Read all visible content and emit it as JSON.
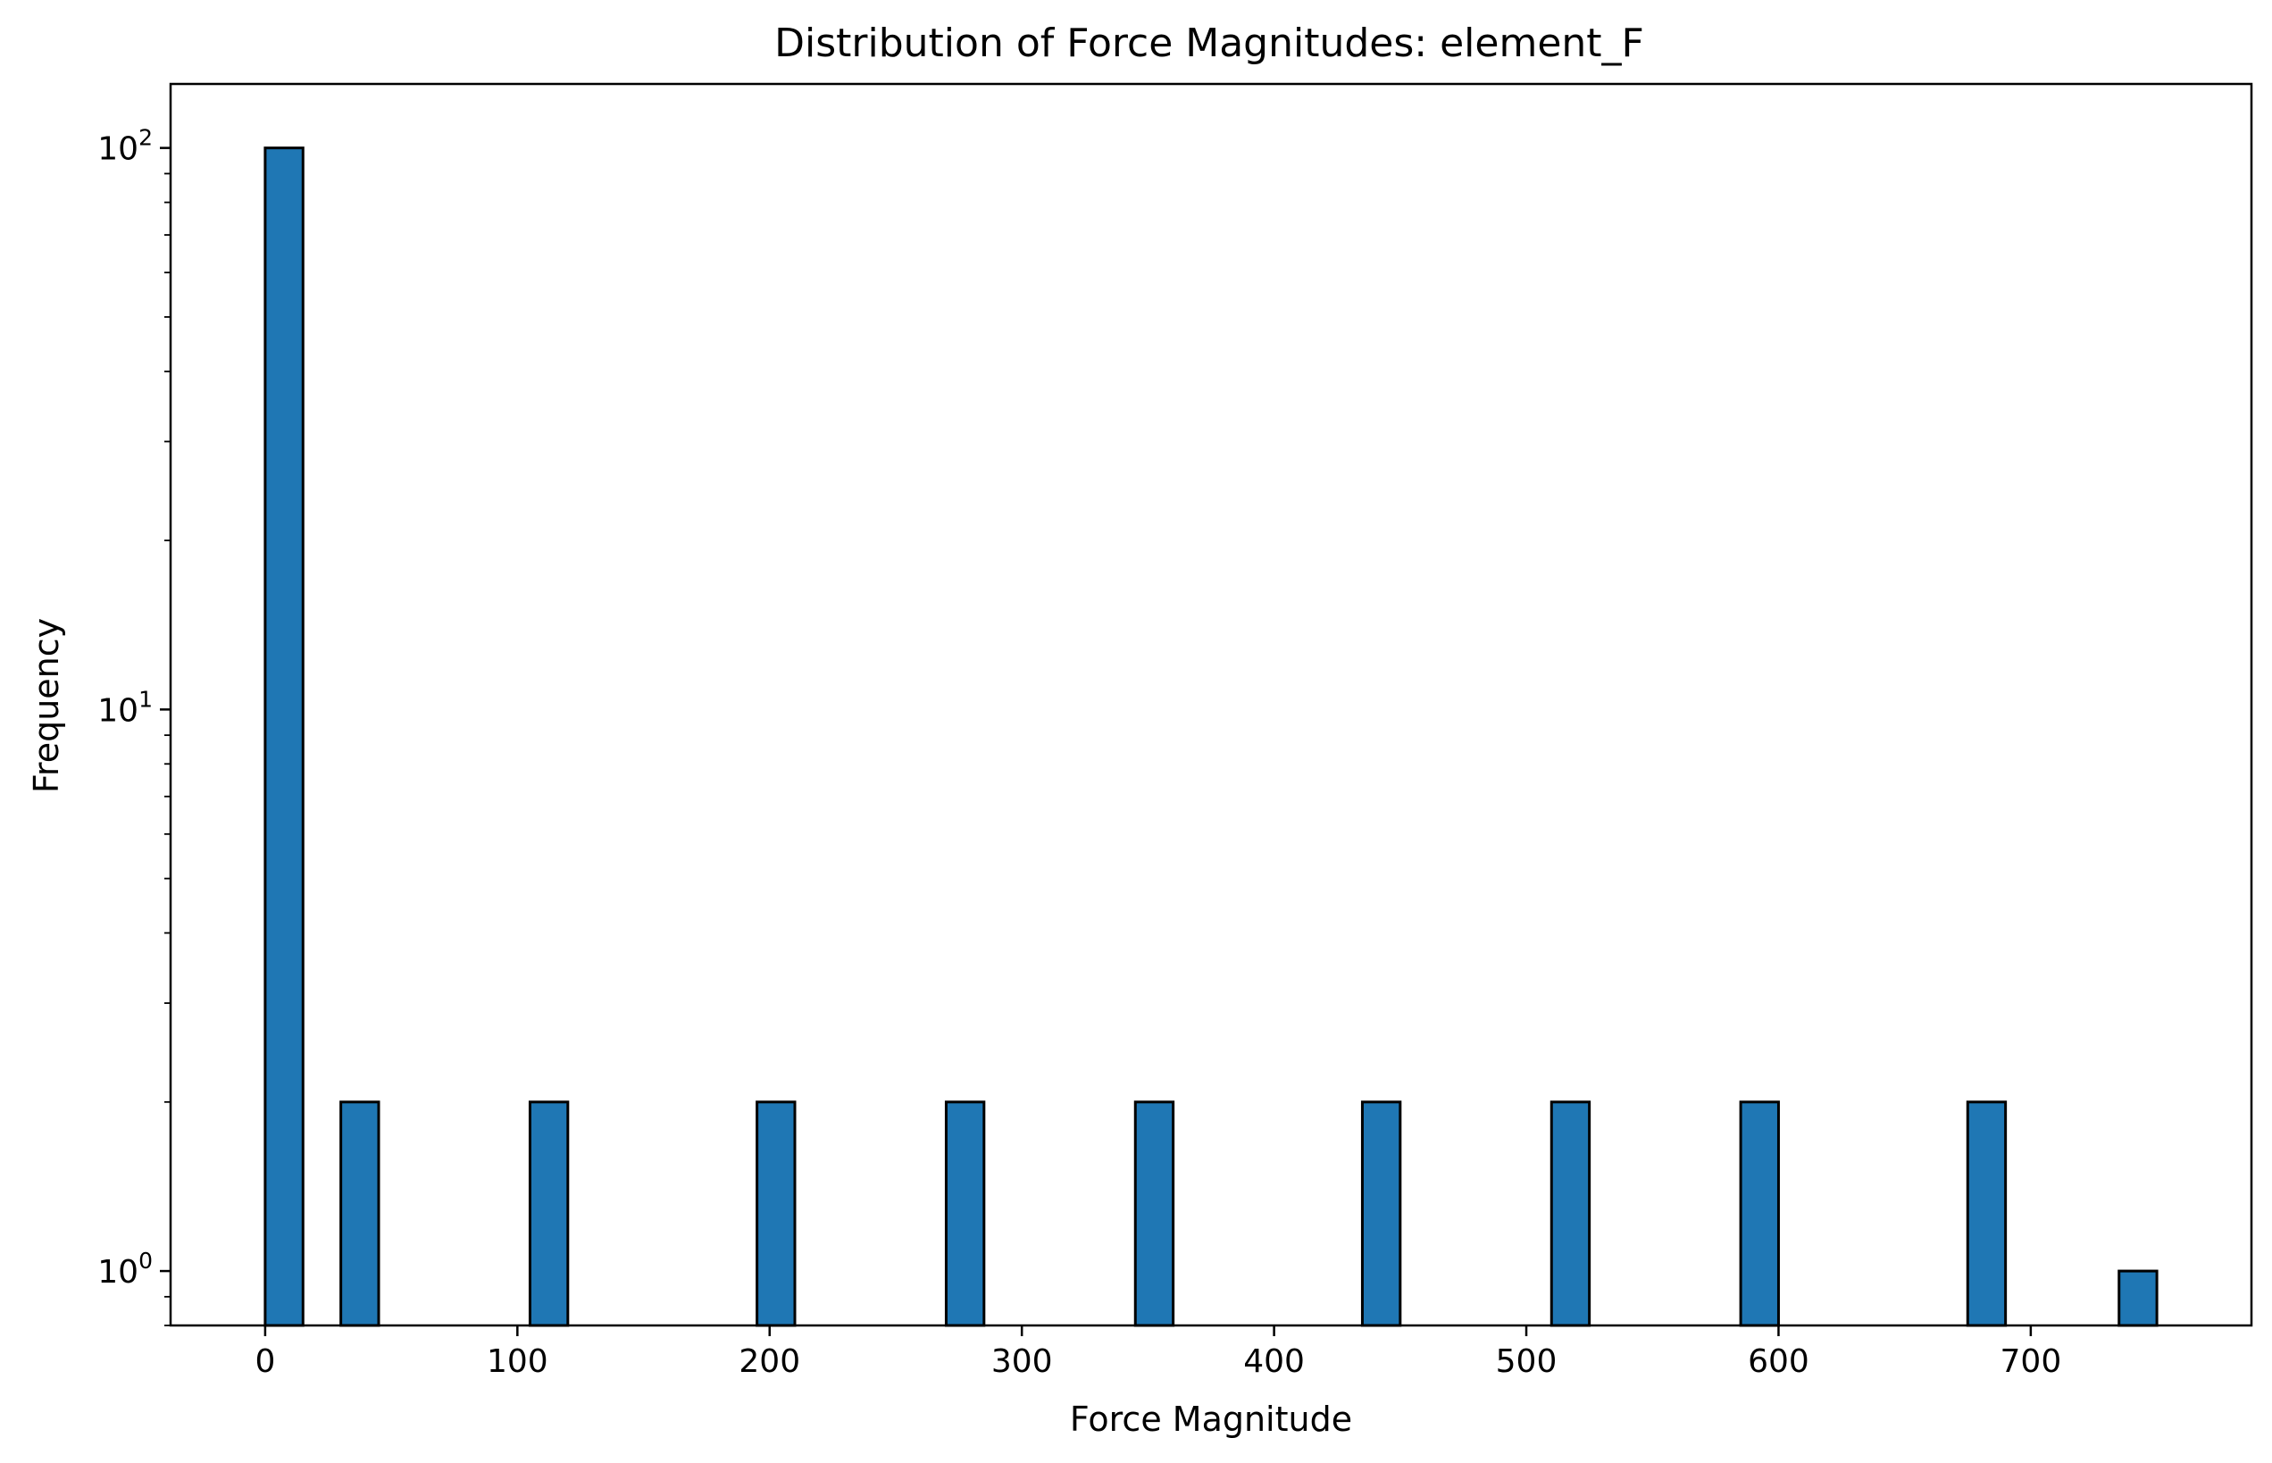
{
  "chart_data": {
    "type": "bar",
    "title": "Distribution of Force Magnitudes: element_F",
    "xlabel": "Force Magnitude",
    "ylabel": "Frequency",
    "y_scale": "log",
    "xlim": [
      -37.5,
      787.5
    ],
    "ylim": [
      0.8,
      130
    ],
    "x_ticks": [
      0,
      100,
      200,
      300,
      400,
      500,
      600,
      700
    ],
    "x_tick_labels": [
      "0",
      "100",
      "200",
      "300",
      "400",
      "500",
      "600",
      "700"
    ],
    "y_ticks": [
      {
        "value": 1,
        "base": "10",
        "exp": "0"
      },
      {
        "value": 10,
        "base": "10",
        "exp": "1"
      },
      {
        "value": 100,
        "base": "10",
        "exp": "2"
      }
    ],
    "bar_color": "#1f77b4",
    "edge_color": "#000000",
    "bins": [
      {
        "x0": 0,
        "x1": 15,
        "count": 100
      },
      {
        "x0": 30,
        "x1": 45,
        "count": 2
      },
      {
        "x0": 105,
        "x1": 120,
        "count": 2
      },
      {
        "x0": 195,
        "x1": 210,
        "count": 2
      },
      {
        "x0": 270,
        "x1": 285,
        "count": 2
      },
      {
        "x0": 345,
        "x1": 360,
        "count": 2
      },
      {
        "x0": 435,
        "x1": 450,
        "count": 2
      },
      {
        "x0": 510,
        "x1": 525,
        "count": 2
      },
      {
        "x0": 585,
        "x1": 600,
        "count": 2
      },
      {
        "x0": 675,
        "x1": 690,
        "count": 2
      },
      {
        "x0": 735,
        "x1": 750,
        "count": 1
      }
    ]
  }
}
